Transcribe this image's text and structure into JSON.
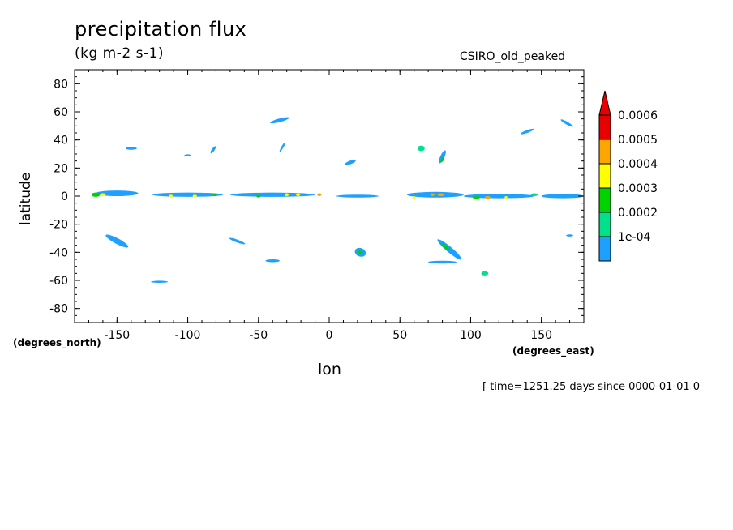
{
  "chart_data": {
    "type": "heatmap",
    "title": "precipitation flux",
    "units": "(kg m-2 s-1)",
    "model_label": "CSIRO_old_peaked",
    "xlabel": "lon",
    "ylabel": "latitude",
    "x_units": "(degrees_east)",
    "y_units": "(degrees_north)",
    "xlim": [
      -180,
      180
    ],
    "ylim": [
      -90,
      90
    ],
    "x_ticks": [
      -150,
      -100,
      -50,
      0,
      50,
      100,
      150
    ],
    "x_tick_labels": [
      "-150",
      "-100",
      "-50",
      "0",
      "50",
      "100",
      "150"
    ],
    "y_ticks": [
      80,
      60,
      40,
      20,
      0,
      -20,
      -40,
      -60,
      -80
    ],
    "y_tick_labels": [
      "80",
      "60",
      "40",
      "20",
      "0",
      "-20",
      "-40",
      "-60",
      "-80"
    ],
    "timestamp": "[ time=1251.25 days since 0000-01-01 0",
    "legend": {
      "levels": [
        "0.0006",
        "0.0005",
        "0.0004",
        "0.0003",
        "0.0002",
        "1e-04"
      ],
      "colors": [
        "#1ea0ff",
        "#00e18c",
        "#00d200",
        "#ffff00",
        "#ffa500",
        "#e60000"
      ]
    },
    "features": [
      {
        "lon": -150,
        "lat": 2,
        "level": 1,
        "w": 30,
        "h": 4
      },
      {
        "lon": -100,
        "lat": 1,
        "level": 1,
        "w": 50,
        "h": 3
      },
      {
        "lon": -40,
        "lat": 1,
        "level": 1,
        "w": 60,
        "h": 3
      },
      {
        "lon": 20,
        "lat": 0,
        "level": 1,
        "w": 30,
        "h": 2
      },
      {
        "lon": 75,
        "lat": 1,
        "level": 1,
        "w": 40,
        "h": 4
      },
      {
        "lon": 120,
        "lat": 0,
        "level": 1,
        "w": 50,
        "h": 3
      },
      {
        "lon": 165,
        "lat": 0,
        "level": 1,
        "w": 30,
        "h": 3
      },
      {
        "lon": -165,
        "lat": 1,
        "level": 3,
        "w": 6,
        "h": 3
      },
      {
        "lon": -160,
        "lat": 1,
        "level": 4,
        "w": 4,
        "h": 2
      },
      {
        "lon": -112,
        "lat": 0,
        "level": 4,
        "w": 3,
        "h": 2
      },
      {
        "lon": -95,
        "lat": 0,
        "level": 4,
        "w": 3,
        "h": 2
      },
      {
        "lon": -81,
        "lat": 1,
        "level": 3,
        "w": 3,
        "h": 2
      },
      {
        "lon": -50,
        "lat": 0,
        "level": 3,
        "w": 3,
        "h": 2
      },
      {
        "lon": -30,
        "lat": 1,
        "level": 4,
        "w": 3,
        "h": 2
      },
      {
        "lon": -22,
        "lat": 1,
        "level": 4,
        "w": 3,
        "h": 2
      },
      {
        "lon": -7,
        "lat": 1,
        "level": 5,
        "w": 3,
        "h": 2
      },
      {
        "lon": 60,
        "lat": -1,
        "level": 4,
        "w": 2,
        "h": 2
      },
      {
        "lon": 73,
        "lat": 1,
        "level": 5,
        "w": 3,
        "h": 2
      },
      {
        "lon": 79,
        "lat": 1,
        "level": 5,
        "w": 5,
        "h": 2
      },
      {
        "lon": 104,
        "lat": -1,
        "level": 3,
        "w": 5,
        "h": 2
      },
      {
        "lon": 112,
        "lat": -1,
        "level": 5,
        "w": 4,
        "h": 2
      },
      {
        "lon": 125,
        "lat": -1,
        "level": 4,
        "w": 2,
        "h": 2
      },
      {
        "lon": 145,
        "lat": 1,
        "level": 2,
        "w": 5,
        "h": 2
      },
      {
        "lon": -150,
        "lat": -32,
        "level": 1,
        "w": 18,
        "h": 4,
        "angle": 28
      },
      {
        "lon": -140,
        "lat": 34,
        "level": 1,
        "w": 8,
        "h": 2
      },
      {
        "lon": -100,
        "lat": 29,
        "level": 1,
        "w": 5,
        "h": 1.5
      },
      {
        "lon": -82,
        "lat": 33,
        "level": 1,
        "w": 6,
        "h": 2,
        "angle": -55
      },
      {
        "lon": -35,
        "lat": 54,
        "level": 1,
        "w": 14,
        "h": 2.5,
        "angle": -15
      },
      {
        "lon": -33,
        "lat": 35,
        "level": 1,
        "w": 8,
        "h": 1.5,
        "angle": -60
      },
      {
        "lon": 15,
        "lat": 24,
        "level": 1,
        "w": 8,
        "h": 2.5,
        "angle": -20
      },
      {
        "lon": 65,
        "lat": 34,
        "level": 2,
        "w": 5,
        "h": 4
      },
      {
        "lon": 80,
        "lat": 28,
        "level": 1,
        "w": 10,
        "h": 3,
        "angle": -65
      },
      {
        "lon": 80,
        "lat": 26,
        "level": 3,
        "w": 4,
        "h": 2,
        "angle": -65
      },
      {
        "lon": 140,
        "lat": 46,
        "level": 1,
        "w": 10,
        "h": 2,
        "angle": -20
      },
      {
        "lon": 168,
        "lat": 52,
        "level": 1,
        "w": 10,
        "h": 2,
        "angle": 30
      },
      {
        "lon": -65,
        "lat": -32,
        "level": 1,
        "w": 12,
        "h": 2,
        "angle": 20
      },
      {
        "lon": -40,
        "lat": -46,
        "level": 1,
        "w": 10,
        "h": 2
      },
      {
        "lon": 22,
        "lat": -40,
        "level": 1,
        "w": 6,
        "h": 8,
        "angle": -70
      },
      {
        "lon": 22,
        "lat": -40,
        "level": 3,
        "w": 2,
        "h": 4,
        "angle": -70
      },
      {
        "lon": 85,
        "lat": -38,
        "level": 1,
        "w": 22,
        "h": 4,
        "angle": 40
      },
      {
        "lon": 82,
        "lat": -36,
        "level": 3,
        "w": 8,
        "h": 2,
        "angle": 40
      },
      {
        "lon": 80,
        "lat": -47,
        "level": 1,
        "w": 20,
        "h": 2
      },
      {
        "lon": 110,
        "lat": -55,
        "level": 2,
        "w": 5,
        "h": 3
      },
      {
        "lon": -120,
        "lat": -61,
        "level": 1,
        "w": 12,
        "h": 1.5
      },
      {
        "lon": 170,
        "lat": -28,
        "level": 1,
        "w": 5,
        "h": 1.5
      }
    ]
  }
}
